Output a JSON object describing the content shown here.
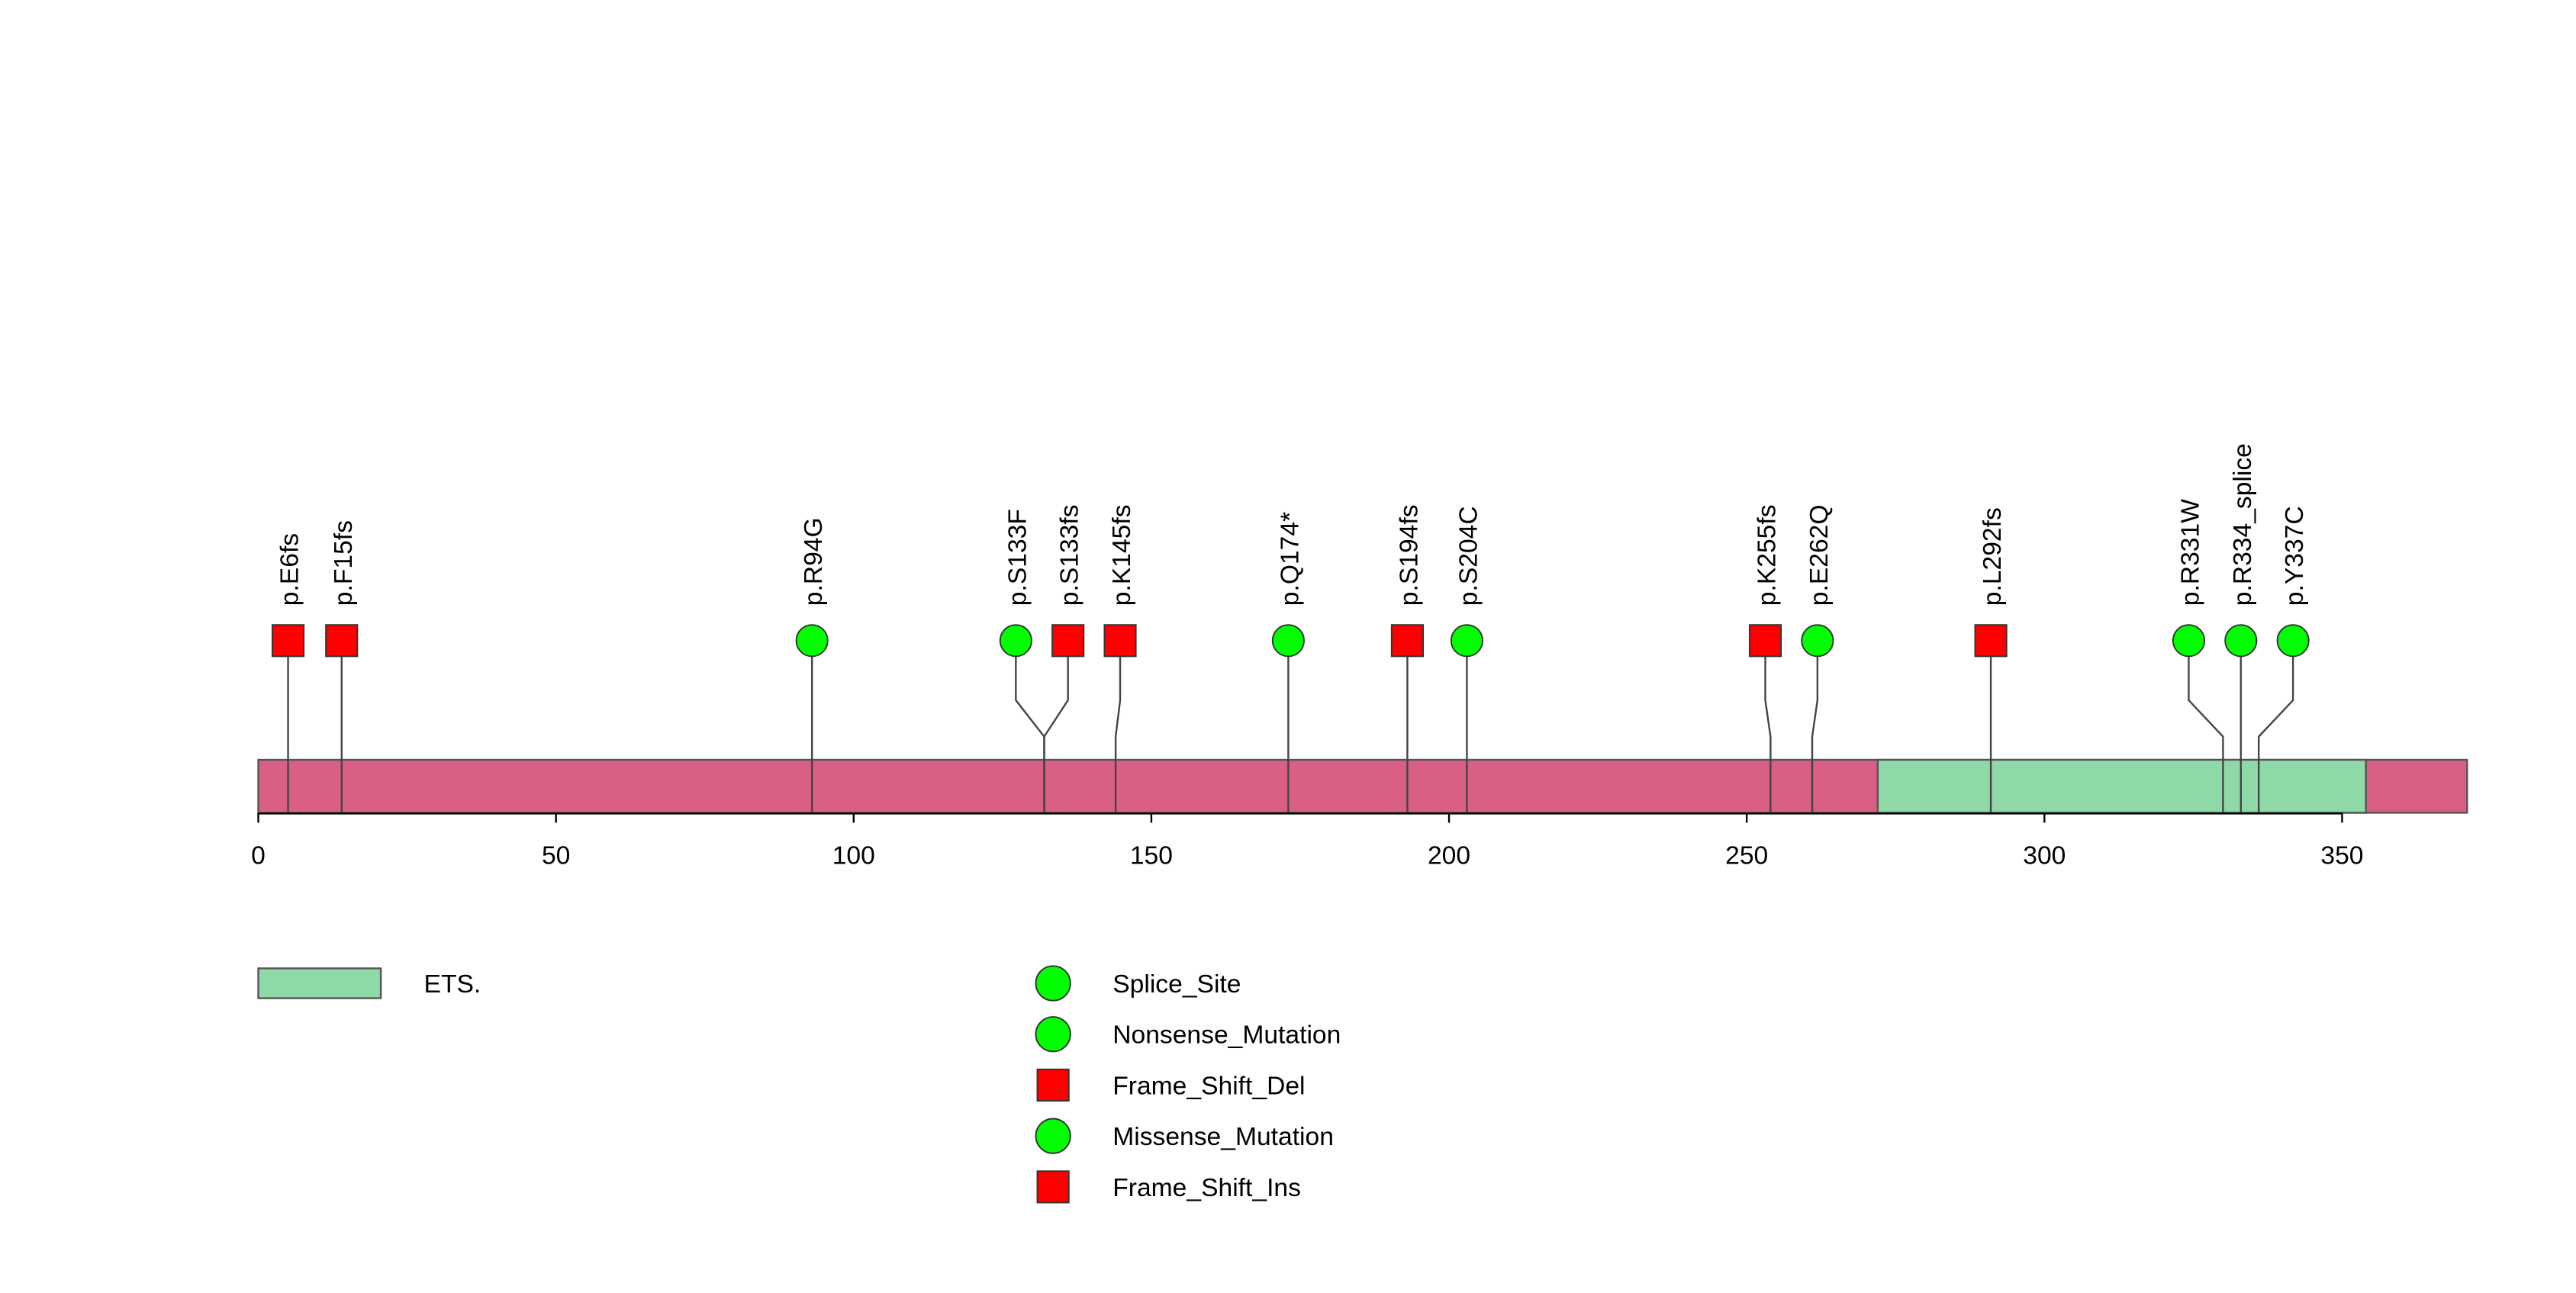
{
  "chart_data": {
    "type": "lollipop",
    "protein_length": 371,
    "x_axis": {
      "range": [
        0,
        371
      ],
      "ticks": [
        0,
        50,
        100,
        150,
        200,
        250,
        300,
        350
      ],
      "tick_labels": [
        "0",
        "50",
        "100",
        "150",
        "200",
        "250",
        "300",
        "350"
      ]
    },
    "backbone_color": "#d95f84",
    "domains": [
      {
        "name": "ETS.",
        "start": 272,
        "end": 354,
        "color": "#8fd9a8"
      }
    ],
    "mutations": [
      {
        "label": "p.E6fs",
        "position": 5,
        "type": "Frame_Shift_Del",
        "shape": "square",
        "color": "#ff0000"
      },
      {
        "label": "p.F15fs",
        "position": 14,
        "type": "Frame_Shift_Del",
        "shape": "square",
        "color": "#ff0000"
      },
      {
        "label": "p.R94G",
        "position": 93,
        "type": "Missense_Mutation",
        "shape": "circle",
        "color": "#00ff00"
      },
      {
        "label": "p.S133F",
        "position": 132,
        "type": "Missense_Mutation",
        "shape": "circle",
        "color": "#00ff00"
      },
      {
        "label": "p.S133fs",
        "position": 132,
        "type": "Frame_Shift_Del",
        "shape": "square",
        "color": "#ff0000"
      },
      {
        "label": "p.K145fs",
        "position": 144,
        "type": "Frame_Shift_Ins",
        "shape": "square",
        "color": "#ff0000"
      },
      {
        "label": "p.Q174*",
        "position": 173,
        "type": "Nonsense_Mutation",
        "shape": "circle",
        "color": "#00ff00"
      },
      {
        "label": "p.S194fs",
        "position": 193,
        "type": "Frame_Shift_Del",
        "shape": "square",
        "color": "#ff0000"
      },
      {
        "label": "p.S204C",
        "position": 203,
        "type": "Missense_Mutation",
        "shape": "circle",
        "color": "#00ff00"
      },
      {
        "label": "p.K255fs",
        "position": 254,
        "type": "Frame_Shift_Del",
        "shape": "square",
        "color": "#ff0000"
      },
      {
        "label": "p.E262Q",
        "position": 261,
        "type": "Missense_Mutation",
        "shape": "circle",
        "color": "#00ff00"
      },
      {
        "label": "p.L292fs",
        "position": 291,
        "type": "Frame_Shift_Del",
        "shape": "square",
        "color": "#ff0000"
      },
      {
        "label": "p.R331W",
        "position": 330,
        "type": "Missense_Mutation",
        "shape": "circle",
        "color": "#00ff00"
      },
      {
        "label": "p.R334_splice",
        "position": 333,
        "type": "Splice_Site",
        "shape": "circle",
        "color": "#00ff00"
      },
      {
        "label": "p.Y337C",
        "position": 336,
        "type": "Missense_Mutation",
        "shape": "circle",
        "color": "#00ff00"
      }
    ],
    "legend_domains": [
      {
        "label": "ETS.",
        "color": "#8fd9a8"
      }
    ],
    "legend_mutation_types": [
      {
        "label": "Splice_Site",
        "shape": "circle",
        "color": "#00ff00"
      },
      {
        "label": "Nonsense_Mutation",
        "shape": "circle",
        "color": "#00ff00"
      },
      {
        "label": "Frame_Shift_Del",
        "shape": "square",
        "color": "#ff0000"
      },
      {
        "label": "Missense_Mutation",
        "shape": "circle",
        "color": "#00ff00"
      },
      {
        "label": "Frame_Shift_Ins",
        "shape": "square",
        "color": "#ff0000"
      }
    ]
  }
}
